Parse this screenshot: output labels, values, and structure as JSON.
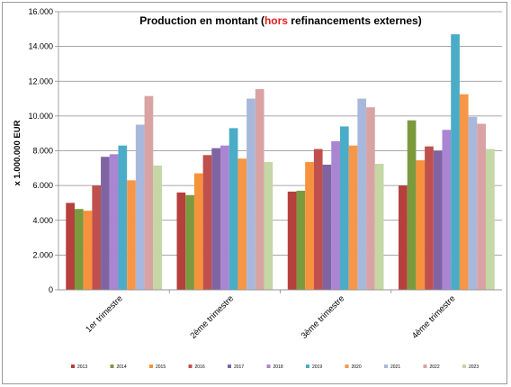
{
  "chart_data": {
    "type": "bar",
    "title": {
      "prefix": "Production en montant (",
      "highlight": "hors",
      "suffix": " refinancements externes)",
      "highlight_color": "#e02020"
    },
    "ylabel": "x 1.000.000 EUR",
    "xlabel": "",
    "ylim": [
      0,
      16000
    ],
    "yticks": [
      "0",
      "2.000",
      "4.000",
      "6.000",
      "8.000",
      "10.000",
      "12.000",
      "14.000",
      "16.000"
    ],
    "grid": true,
    "legend_position": "bottom",
    "categories": [
      "1er trimestre",
      "2ème trimestre",
      "3ème trimestre",
      "4ème trimestre"
    ],
    "series": [
      {
        "name": "2013",
        "color": "#b5403c",
        "values": [
          5000,
          5600,
          5650,
          6000
        ]
      },
      {
        "name": "2014",
        "color": "#7b9a3e",
        "values": [
          4650,
          5450,
          5700,
          9750
        ]
      },
      {
        "name": "2015",
        "color": "#f6923c",
        "values": [
          4550,
          6700,
          7350,
          7450
        ]
      },
      {
        "name": "2016",
        "color": "#c0504d",
        "values": [
          6000,
          7750,
          8100,
          8250
        ]
      },
      {
        "name": "2017",
        "color": "#8064a2",
        "values": [
          7650,
          8150,
          7200,
          8000
        ]
      },
      {
        "name": "2018",
        "color": "#a985d2",
        "values": [
          7800,
          8300,
          8550,
          9200
        ]
      },
      {
        "name": "2019",
        "color": "#4aacc6",
        "values": [
          8300,
          9300,
          9400,
          14700
        ]
      },
      {
        "name": "2020",
        "color": "#f79646",
        "values": [
          6300,
          7550,
          8300,
          11250
        ]
      },
      {
        "name": "2021",
        "color": "#a8b8dc",
        "values": [
          9500,
          11000,
          11000,
          9950
        ]
      },
      {
        "name": "2022",
        "color": "#d9a3a3",
        "values": [
          11150,
          11550,
          10500,
          9550
        ]
      },
      {
        "name": "2023",
        "color": "#c4d7a4",
        "values": [
          7150,
          7350,
          7250,
          8100
        ]
      }
    ]
  }
}
